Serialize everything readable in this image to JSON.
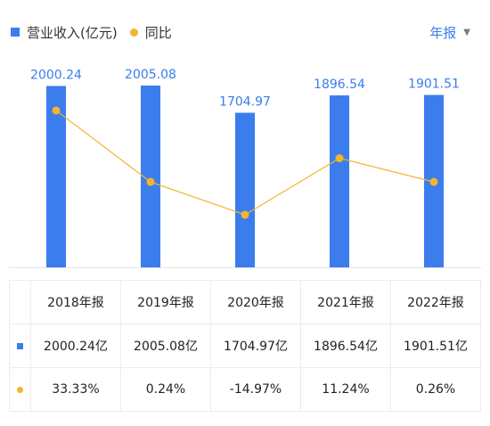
{
  "legend": {
    "revenue_label": "营业收入(亿元)",
    "yoy_label": "同比"
  },
  "period_selector": {
    "label": "年报",
    "caret": "▼"
  },
  "colors": {
    "bar": "#3b7ded",
    "line": "#f5b32f",
    "positive": "#e8454e",
    "negative": "#2aa879"
  },
  "table": {
    "headers": [
      "2018年报",
      "2019年报",
      "2020年报",
      "2021年报",
      "2022年报"
    ],
    "revenue_row": [
      "2000.24亿",
      "2005.08亿",
      "1704.97亿",
      "1896.54亿",
      "1901.51亿"
    ],
    "yoy_row": [
      "33.33%",
      "0.24%",
      "-14.97%",
      "11.24%",
      "0.26%"
    ]
  },
  "chart_data": {
    "type": "bar",
    "categories": [
      "2018年报",
      "2019年报",
      "2020年报",
      "2021年报",
      "2022年报"
    ],
    "series": [
      {
        "name": "营业收入(亿元)",
        "type": "bar",
        "values": [
          2000.24,
          2005.08,
          1704.97,
          1896.54,
          1901.51
        ],
        "labels": [
          "2000.24",
          "2005.08",
          "1704.97",
          "1896.54",
          "1901.51"
        ]
      },
      {
        "name": "同比",
        "type": "line",
        "values": [
          33.33,
          0.24,
          -14.97,
          11.24,
          0.26
        ]
      }
    ],
    "ylim": [
      0,
      2005.08
    ],
    "legend_position": "top-left",
    "grid": false
  }
}
